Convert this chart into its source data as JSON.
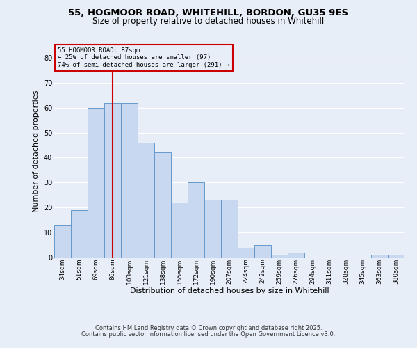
{
  "title1": "55, HOGMOOR ROAD, WHITEHILL, BORDON, GU35 9ES",
  "title2": "Size of property relative to detached houses in Whitehill",
  "xlabel": "Distribution of detached houses by size in Whitehill",
  "ylabel": "Number of detached properties",
  "bar_color": "#c8d8f0",
  "bar_edgecolor": "#6699cc",
  "vline_color": "#cc0000",
  "vline_x_index": 3,
  "annotation_text": "55 HOGMOOR ROAD: 87sqm\n← 25% of detached houses are smaller (97)\n74% of semi-detached houses are larger (291) →",
  "annotation_box_edgecolor": "#cc0000",
  "categories": [
    "34sqm",
    "51sqm",
    "69sqm",
    "86sqm",
    "103sqm",
    "121sqm",
    "138sqm",
    "155sqm",
    "172sqm",
    "190sqm",
    "207sqm",
    "224sqm",
    "242sqm",
    "259sqm",
    "276sqm",
    "294sqm",
    "311sqm",
    "328sqm",
    "345sqm",
    "363sqm",
    "380sqm"
  ],
  "values": [
    13,
    19,
    60,
    62,
    62,
    46,
    42,
    22,
    30,
    23,
    23,
    4,
    5,
    1,
    2,
    0,
    0,
    0,
    0,
    1,
    1
  ],
  "ylim": [
    0,
    85
  ],
  "yticks": [
    0,
    10,
    20,
    30,
    40,
    50,
    60,
    70,
    80
  ],
  "background_color": "#e8eef8",
  "footer_text1": "Contains HM Land Registry data © Crown copyright and database right 2025.",
  "footer_text2": "Contains public sector information licensed under the Open Government Licence v3.0.",
  "grid_color": "#ffffff",
  "title_fontsize": 9.5,
  "subtitle_fontsize": 8.5
}
